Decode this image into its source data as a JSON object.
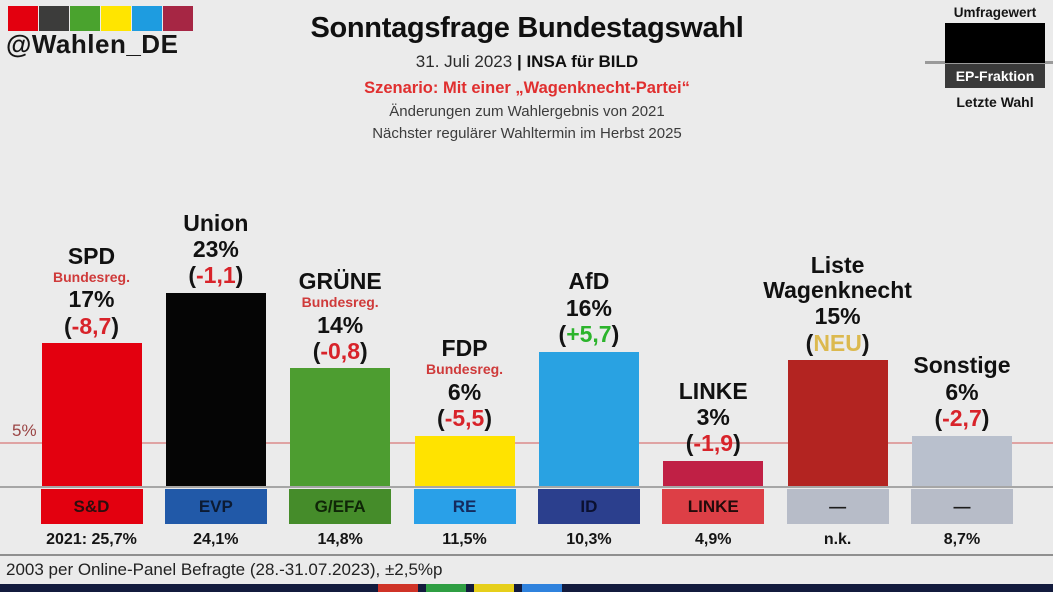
{
  "account": "@Wahlen_DE",
  "logo_colors": [
    "#e3000f",
    "#3c3c3b",
    "#4aa32e",
    "#ffe500",
    "#1e9ce0",
    "#a62644"
  ],
  "legend": {
    "poll_label": "Umfragewert",
    "fraction_label": "EP-Fraktion",
    "last_election_label": "Letzte Wahl"
  },
  "chart_data": {
    "type": "bar",
    "title": "Sonntagsfrage Bundestagswahl",
    "subtitle_date": "31. Juli 2023",
    "subtitle_separator": "|",
    "subtitle_source": "INSA für BILD",
    "scenario": "Szenario: Mit einer „Wagenknecht-Partei“",
    "note_changes": "Änderungen zum Wahlergebnis von 2021",
    "note_next_election": "Nächster regulärer Wahltermin im Herbst 2025",
    "unit": "%",
    "ylim": [
      0,
      25
    ],
    "grid": false,
    "threshold": {
      "value": 5,
      "label": "5%",
      "line_color": "#dfa3a3"
    },
    "change_format": {
      "open": "(",
      "close": ")"
    },
    "categories": [
      "SPD",
      "Union",
      "GRÜNE",
      "FDP",
      "AfD",
      "LINKE",
      "Liste Wagenknecht",
      "Sonstige"
    ],
    "parties": [
      {
        "name": "SPD",
        "gov_note": "Bundesreg.",
        "value": 17,
        "value_label": "17%",
        "change": "-8,7",
        "change_color": "#d8232a",
        "bar_color": "#e3000f",
        "ep_label": "S&D",
        "ep_bg": "#e3000f",
        "ep_text": "#2e0d0d",
        "last_result": "2021: 25,7%"
      },
      {
        "name": "Union",
        "gov_note": "",
        "value": 23,
        "value_label": "23%",
        "change": "-1,1",
        "change_color": "#d8232a",
        "bar_color": "#050505",
        "ep_label": "EVP",
        "ep_bg": "#2159a8",
        "ep_text": "#0c1b33",
        "last_result": "24,1%"
      },
      {
        "name": "GRÜNE",
        "gov_note": "Bundesreg.",
        "value": 14,
        "value_label": "14%",
        "change": "-0,8",
        "change_color": "#d8232a",
        "bar_color": "#4d9d30",
        "ep_label": "G/EFA",
        "ep_bg": "#458c2a",
        "ep_text": "#0f2607",
        "last_result": "14,8%"
      },
      {
        "name": "FDP",
        "gov_note": "Bundesreg.",
        "value": 6,
        "value_label": "6%",
        "change": "-5,5",
        "change_color": "#d8232a",
        "bar_color": "#ffe300",
        "ep_label": "RE",
        "ep_bg": "#29a0e8",
        "ep_text": "#142a5e",
        "last_result": "11,5%"
      },
      {
        "name": "AfD",
        "gov_note": "",
        "value": 16,
        "value_label": "16%",
        "change": "+5,7",
        "change_color": "#2cb42c",
        "bar_color": "#29a2e2",
        "ep_label": "ID",
        "ep_bg": "#2b3f8d",
        "ep_text": "#0a1030",
        "last_result": "10,3%"
      },
      {
        "name": "LINKE",
        "gov_note": "",
        "value": 3,
        "value_label": "3%",
        "change": "-1,9",
        "change_color": "#d8232a",
        "bar_color": "#c02045",
        "ep_label": "LINKE",
        "ep_bg": "#dd3f46",
        "ep_text": "#230b0b",
        "last_result": "4,9%"
      },
      {
        "name": "Liste\nWagenknecht",
        "gov_note": "",
        "value": 15,
        "value_label": "15%",
        "change": "NEU",
        "change_color": "#dcb94e",
        "bar_color": "#b32421",
        "ep_label": "—",
        "ep_bg": "#b7bcc8",
        "ep_text": "#1d1d1d",
        "last_result": "n.k."
      },
      {
        "name": "Sonstige",
        "gov_note": "",
        "value": 6,
        "value_label": "6%",
        "change": "-2,7",
        "change_color": "#d8232a",
        "bar_color": "#b9c0cd",
        "ep_label": "—",
        "ep_bg": "#b7bcc8",
        "ep_text": "#1d1d1d",
        "last_result": "8,7%"
      }
    ]
  },
  "footer": {
    "survey_note": "2003 per Online-Panel Befragte (28.-31.07.2023), ±2,5%p"
  },
  "bottom_bar": {
    "background": "#131b3d",
    "segment_colors": [
      "#cf3327",
      "#2f9e43",
      "#e6cf1a",
      "#2f82dd"
    ]
  }
}
